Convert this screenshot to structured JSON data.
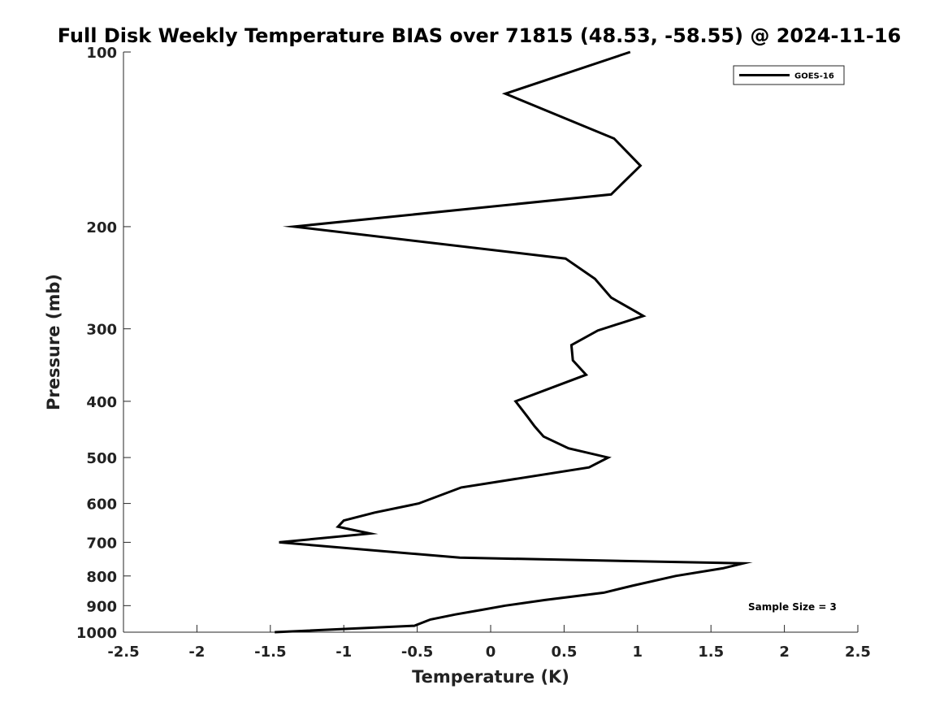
{
  "chart_data": {
    "type": "line",
    "title": "Full Disk Weekly Temperature BIAS over 71815 (48.53, -58.55) @ 2024-11-16",
    "xlabel": "Temperature (K)",
    "ylabel": "Pressure (mb)",
    "xlim": [
      -2.5,
      2.5
    ],
    "ylim": [
      100,
      1000
    ],
    "y_scale": "log",
    "y_reversed": true,
    "grid": false,
    "x_ticks": [
      "-2.5",
      "-2",
      "-1.5",
      "-1",
      "-0.5",
      "0",
      "0.5",
      "1",
      "1.5",
      "2",
      "2.5"
    ],
    "x_tick_values": [
      -2.5,
      -2,
      -1.5,
      -1,
      -0.5,
      0,
      0.5,
      1,
      1.5,
      2,
      2.5
    ],
    "y_ticks": [
      "100",
      "200",
      "300",
      "400",
      "500",
      "600",
      "700",
      "800",
      "900",
      "1000"
    ],
    "y_tick_values": [
      100,
      200,
      300,
      400,
      500,
      600,
      700,
      800,
      900,
      1000
    ],
    "legend": {
      "position": "top-right",
      "entries": [
        "GOES-16"
      ]
    },
    "annotation": "Sample Size = 3",
    "series": [
      {
        "name": "GOES-16",
        "color": "#000000",
        "points": [
          {
            "x": 0.95,
            "y": 100
          },
          {
            "x": 0.1,
            "y": 118
          },
          {
            "x": 0.84,
            "y": 141
          },
          {
            "x": 1.02,
            "y": 157
          },
          {
            "x": 0.82,
            "y": 176
          },
          {
            "x": -1.34,
            "y": 200
          },
          {
            "x": 0.51,
            "y": 227
          },
          {
            "x": 0.71,
            "y": 246
          },
          {
            "x": 0.82,
            "y": 265
          },
          {
            "x": 1.04,
            "y": 285
          },
          {
            "x": 0.73,
            "y": 302
          },
          {
            "x": 0.55,
            "y": 320
          },
          {
            "x": 0.56,
            "y": 340
          },
          {
            "x": 0.65,
            "y": 360
          },
          {
            "x": 0.17,
            "y": 400
          },
          {
            "x": 0.25,
            "y": 425
          },
          {
            "x": 0.3,
            "y": 442
          },
          {
            "x": 0.36,
            "y": 460
          },
          {
            "x": 0.53,
            "y": 482
          },
          {
            "x": 0.8,
            "y": 500
          },
          {
            "x": 0.67,
            "y": 520
          },
          {
            "x": -0.2,
            "y": 563
          },
          {
            "x": -0.49,
            "y": 600
          },
          {
            "x": -0.79,
            "y": 622
          },
          {
            "x": -1.0,
            "y": 642
          },
          {
            "x": -1.04,
            "y": 658
          },
          {
            "x": -0.82,
            "y": 676
          },
          {
            "x": -1.44,
            "y": 700
          },
          {
            "x": -0.21,
            "y": 744
          },
          {
            "x": 1.72,
            "y": 761
          },
          {
            "x": 1.58,
            "y": 776
          },
          {
            "x": 1.26,
            "y": 800
          },
          {
            "x": 0.97,
            "y": 831
          },
          {
            "x": 0.77,
            "y": 855
          },
          {
            "x": 0.37,
            "y": 880
          },
          {
            "x": 0.1,
            "y": 900
          },
          {
            "x": -0.06,
            "y": 915
          },
          {
            "x": -0.24,
            "y": 932
          },
          {
            "x": -0.41,
            "y": 951
          },
          {
            "x": -0.52,
            "y": 975
          },
          {
            "x": -1.47,
            "y": 1000
          }
        ]
      }
    ]
  }
}
